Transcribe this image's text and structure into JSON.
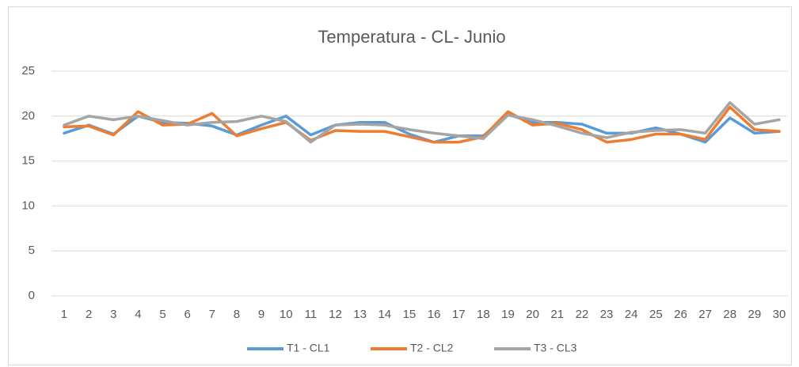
{
  "chart_data": {
    "type": "line",
    "title": "Temperatura - CL- Junio",
    "categories": [
      "1",
      "2",
      "3",
      "4",
      "5",
      "6",
      "7",
      "8",
      "9",
      "10",
      "11",
      "12",
      "13",
      "14",
      "15",
      "16",
      "17",
      "18",
      "19",
      "20",
      "21",
      "22",
      "23",
      "24",
      "25",
      "26",
      "27",
      "28",
      "29",
      "30"
    ],
    "series": [
      {
        "name": "T1  - CL1",
        "color": "#5b9bd5",
        "values": [
          18.1,
          19,
          18,
          20,
          19.3,
          19.2,
          18.9,
          17.9,
          19,
          20,
          17.9,
          19,
          19.3,
          19.3,
          18,
          17.1,
          17.8,
          17.8,
          20.2,
          19.3,
          19.3,
          19.1,
          18.1,
          18.1,
          18.7,
          18,
          17.1,
          19.8,
          18.1,
          18.3
        ]
      },
      {
        "name": "T2 - CL2",
        "color": "#ed7d31",
        "values": [
          18.8,
          18.9,
          17.9,
          20.5,
          19,
          19.1,
          20.3,
          17.8,
          18.6,
          19.3,
          17.3,
          18.4,
          18.3,
          18.3,
          17.7,
          17.1,
          17.1,
          17.7,
          20.5,
          19,
          19.2,
          18.5,
          17.1,
          17.4,
          18,
          18,
          17.4,
          21,
          18.5,
          18.3
        ]
      },
      {
        "name": "T3 - CL3",
        "color": "#a5a5a5",
        "values": [
          19,
          20,
          19.6,
          20,
          19.5,
          19,
          19.3,
          19.4,
          20,
          19.4,
          17.1,
          19,
          19.1,
          19,
          18.5,
          18.1,
          17.8,
          17.5,
          20.1,
          19.6,
          18.9,
          18.1,
          17.6,
          18.2,
          18.4,
          18.5,
          18.1,
          21.5,
          19.1,
          19.6
        ]
      }
    ],
    "ylim": [
      0,
      25
    ],
    "yticks": [
      0,
      5,
      10,
      15,
      20,
      25
    ],
    "grid": true,
    "legend": "bottom"
  }
}
